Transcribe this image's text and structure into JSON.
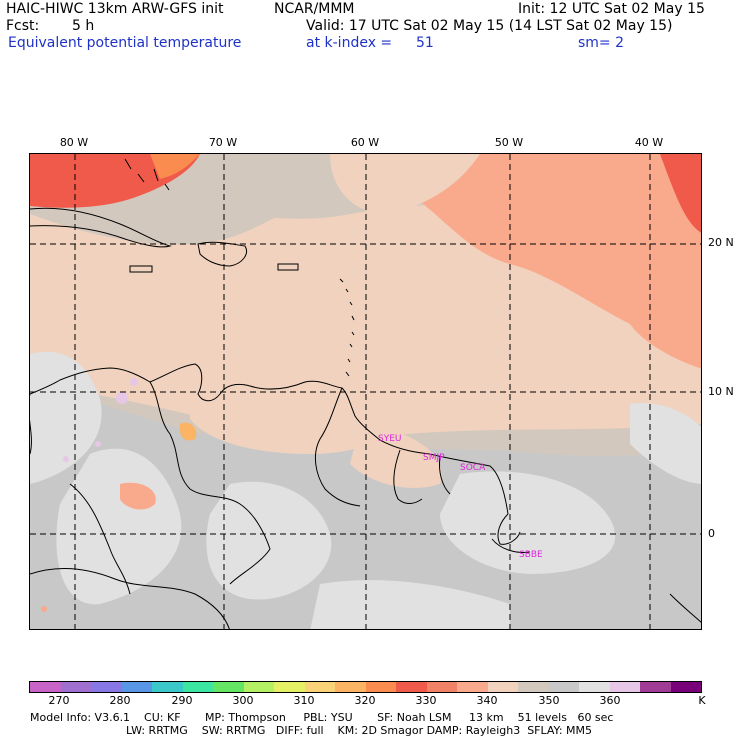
{
  "header": {
    "model_line": "HAIC-HIWC 13km ARW-GFS init",
    "center": "NCAR/MMM",
    "init": "Init: 12 UTC Sat 02 May 15",
    "fcst_label": "Fcst:",
    "fcst_value": "5 h",
    "valid": "Valid: 17 UTC Sat 02 May 15 (14 LST Sat 02 May 15)",
    "field_name": "Equivalent potential temperature",
    "level": "at k-index =",
    "level_value": "51",
    "smoothing": "sm= 2"
  },
  "map": {
    "lon_labels": [
      "80 W",
      "70 W",
      "60 W",
      "50 W",
      "40 W"
    ],
    "lat_labels": [
      "20 N",
      "10 N",
      "0"
    ],
    "stations": [
      "SYEU",
      "SMJP",
      "SOCA",
      "SBBE"
    ]
  },
  "colorbar": {
    "colors": [
      "#c864c8",
      "#a070d0",
      "#8878e6",
      "#5a96e6",
      "#3cc8c8",
      "#3ce6a0",
      "#64e664",
      "#b4f064",
      "#e6f064",
      "#fad278",
      "#fab464",
      "#fa8c50",
      "#f05a4b",
      "#f08268",
      "#faaa8c",
      "#f0d2be",
      "#d2c8be",
      "#c8c8c8",
      "#e1e1e1",
      "#e6c8e6",
      "#a03c96",
      "#780078"
    ],
    "labels": [
      "270",
      "280",
      "290",
      "300",
      "310",
      "320",
      "330",
      "340",
      "350",
      "360"
    ],
    "unit": "K"
  },
  "footer": {
    "line1": "Model Info: V3.6.1    CU: KF       MP: Thompson     PBL: YSU       SF: Noah LSM     13 km    51 levels   60 sec",
    "line2": "LW: RRTMG    SW: RRTMG   DIFF: full    KM: 2D Smagor DAMP: Rayleigh3  SFLAY: MM5"
  }
}
